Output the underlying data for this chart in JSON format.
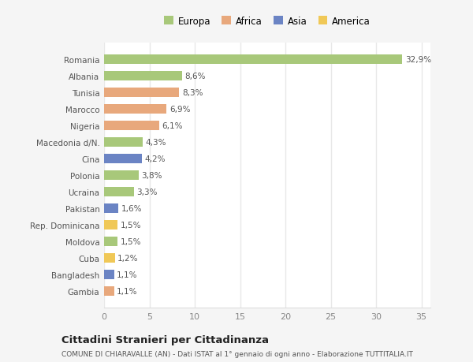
{
  "categories": [
    "Gambia",
    "Bangladesh",
    "Cuba",
    "Moldova",
    "Rep. Dominicana",
    "Pakistan",
    "Ucraina",
    "Polonia",
    "Cina",
    "Macedonia d/N.",
    "Nigeria",
    "Marocco",
    "Tunisia",
    "Albania",
    "Romania"
  ],
  "values": [
    1.1,
    1.1,
    1.2,
    1.5,
    1.5,
    1.6,
    3.3,
    3.8,
    4.2,
    4.3,
    6.1,
    6.9,
    8.3,
    8.6,
    32.9
  ],
  "labels": [
    "1,1%",
    "1,1%",
    "1,2%",
    "1,5%",
    "1,5%",
    "1,6%",
    "3,3%",
    "3,8%",
    "4,2%",
    "4,3%",
    "6,1%",
    "6,9%",
    "8,3%",
    "8,6%",
    "32,9%"
  ],
  "colors": [
    "#e8a87c",
    "#6b84c4",
    "#f0c857",
    "#a8c87a",
    "#f0c857",
    "#6b84c4",
    "#a8c87a",
    "#a8c87a",
    "#6b84c4",
    "#a8c87a",
    "#e8a87c",
    "#e8a87c",
    "#e8a87c",
    "#a8c87a",
    "#a8c87a"
  ],
  "legend_labels": [
    "Europa",
    "Africa",
    "Asia",
    "America"
  ],
  "legend_colors": [
    "#a8c87a",
    "#e8a87c",
    "#6b84c4",
    "#f0c857"
  ],
  "xlim": [
    0,
    36
  ],
  "xticks": [
    0,
    5,
    10,
    15,
    20,
    25,
    30,
    35
  ],
  "title": "Cittadini Stranieri per Cittadinanza",
  "subtitle": "COMUNE DI CHIARAVALLE (AN) - Dati ISTAT al 1° gennaio di ogni anno - Elaborazione TUTTITALIA.IT",
  "fig_bg_color": "#f5f5f5",
  "plot_bg_color": "#ffffff",
  "grid_color": "#e8e8e8"
}
